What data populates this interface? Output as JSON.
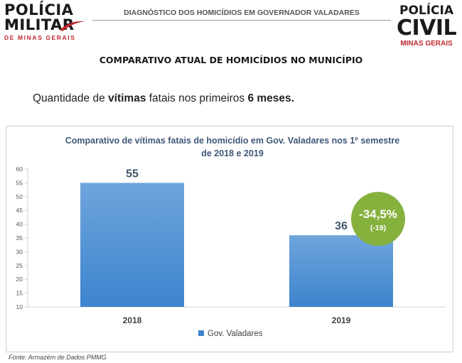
{
  "header": {
    "logo_left": {
      "line1": "POLÍCIA",
      "line2": "MILITAR",
      "line3": "DE MINAS GERAIS"
    },
    "title": "DIAGNÓSTICO DOS HOMICÍDIOS EM GOVERNADOR VALADARES",
    "logo_right": {
      "line1": "POLÍCIA",
      "line2": "CIVIL",
      "line3": "MINAS GERAIS"
    }
  },
  "section_title": "COMPARATIVO ATUAL DE HOMICÍDIOS NO MUNICÍPIO",
  "intro": {
    "p1": "Quantidade de ",
    "b1": "vítimas",
    "p2": " fatais nos primeiros ",
    "b2": "6 meses."
  },
  "chart_data": {
    "type": "bar",
    "title_line1": "Comparativo de vítimas fatais de homicídio em Gov. Valadares nos 1º semestre",
    "title_line2": "de 2018 e 2019",
    "categories": [
      "2018",
      "2019"
    ],
    "series": [
      {
        "name": "Gov. Valadares",
        "values": [
          55,
          36
        ]
      }
    ],
    "data_labels": [
      "55",
      "36"
    ],
    "ylim": [
      10,
      60
    ],
    "yticks": [
      10,
      15,
      20,
      25,
      30,
      35,
      40,
      45,
      50,
      55,
      60
    ],
    "grid": false,
    "legend_position": "bottom",
    "annotation": {
      "main": "-34,5%",
      "sub": "(-19)"
    },
    "colors": {
      "bar_top": "#6fa5dd",
      "bar_bottom": "#3d84cd",
      "badge": "#86b13d",
      "title": "#3f5878"
    }
  },
  "source": "Fonte: Armazém de Dados PMMG"
}
